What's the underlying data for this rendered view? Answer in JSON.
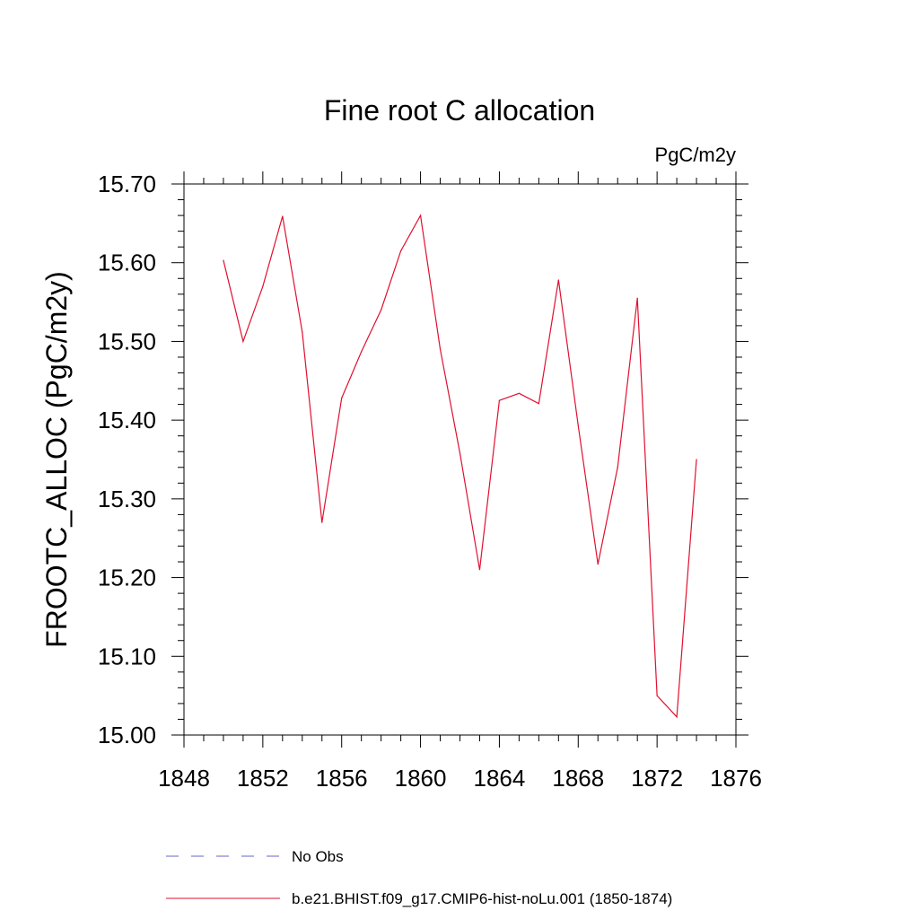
{
  "chart_data": {
    "type": "line",
    "title": "Fine root C allocation",
    "units": "PgC/m2y",
    "ylabel": "FROOTC_ALLOC  (PgC/m2y)",
    "xlabel": "",
    "xlim": [
      1848,
      1876
    ],
    "ylim": [
      15.0,
      15.7
    ],
    "x_ticks": [
      1848,
      1852,
      1856,
      1860,
      1864,
      1868,
      1872,
      1876
    ],
    "x_tick_labels": [
      "1848",
      "1852",
      "1856",
      "1860",
      "1864",
      "1868",
      "1872",
      "1876"
    ],
    "y_ticks": [
      15.0,
      15.1,
      15.2,
      15.3,
      15.4,
      15.5,
      15.6,
      15.7
    ],
    "y_tick_labels": [
      "15.00",
      "15.10",
      "15.20",
      "15.30",
      "15.40",
      "15.50",
      "15.60",
      "15.70"
    ],
    "grid": false,
    "legend_position": "bottom",
    "legend": [
      {
        "label": "No Obs",
        "color": "#6666cc",
        "style": "dashed"
      },
      {
        "label": "b.e21.BHIST.f09_g17.CMIP6-hist-noLu.001 (1850-1874)",
        "color": "#e0102f",
        "style": "solid"
      }
    ],
    "series": [
      {
        "name": "b.e21.BHIST.f09_g17.CMIP6-hist-noLu.001 (1850-1874)",
        "color": "#e0102f",
        "x": [
          1850,
          1851,
          1852,
          1853,
          1854,
          1855,
          1856,
          1857,
          1858,
          1859,
          1860,
          1861,
          1862,
          1863,
          1864,
          1865,
          1866,
          1867,
          1868,
          1869,
          1870,
          1871,
          1872,
          1873,
          1874
        ],
        "values": [
          15.603,
          15.5,
          15.57,
          15.659,
          15.512,
          15.27,
          15.428,
          15.487,
          15.54,
          15.615,
          15.66,
          15.49,
          15.358,
          15.21,
          15.425,
          15.434,
          15.421,
          15.578,
          15.393,
          15.217,
          15.34,
          15.555,
          15.05,
          15.023,
          15.35
        ]
      }
    ]
  }
}
